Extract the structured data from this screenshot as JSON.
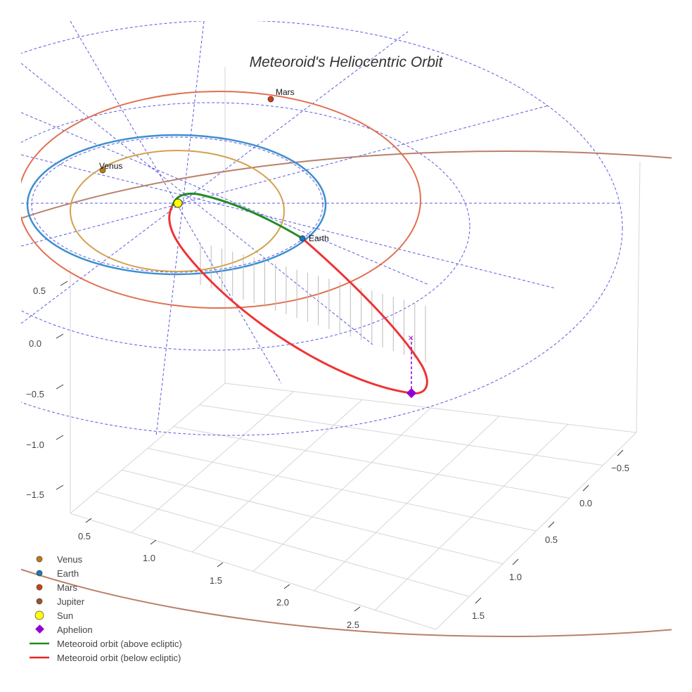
{
  "chart_data": {
    "type": "scatter3d",
    "title": "Meteoroid's Heliocentric Orbit",
    "axes": {
      "x_ticks": [
        "0.5",
        "1.0",
        "1.5",
        "2.0",
        "2.5"
      ],
      "y_ticks": [
        "−0.5",
        "0.0",
        "0.5",
        "1.0",
        "1.5"
      ],
      "z_ticks": [
        "0.5",
        "0.0",
        "−0.5",
        "−1.0",
        "−1.5"
      ]
    },
    "planets": [
      {
        "name": "Venus",
        "orbit_radius_au": 0.72,
        "color": "#d4a04c",
        "marker": "#c07a10"
      },
      {
        "name": "Earth",
        "orbit_radius_au": 1.0,
        "color": "#3d8fd1",
        "marker": "#1f77b4"
      },
      {
        "name": "Mars",
        "orbit_radius_au": 1.52,
        "color": "#e07050",
        "marker": "#d04010"
      },
      {
        "name": "Jupiter",
        "orbit_radius_au": 5.2,
        "color": "#b9806a",
        "marker": "#a0522d"
      }
    ],
    "point_labels": {
      "venus": "Venus",
      "earth": "Earth",
      "mars": "Mars"
    },
    "legend": [
      {
        "label": "Venus",
        "symbol": "circle",
        "color": "#c07a10"
      },
      {
        "label": "Earth",
        "symbol": "circle",
        "color": "#1f77b4"
      },
      {
        "label": "Mars",
        "symbol": "circle",
        "color": "#d04010"
      },
      {
        "label": "Jupiter",
        "symbol": "circle",
        "color": "#a0522d"
      },
      {
        "label": "Sun",
        "symbol": "circle-lg",
        "color": "#ffff00"
      },
      {
        "label": "Aphelion",
        "symbol": "diamond",
        "color": "#9400d3"
      },
      {
        "label": "Meteoroid orbit (above ecliptic)",
        "symbol": "line",
        "color": "#228b22"
      },
      {
        "label": "Meteoroid orbit (below ecliptic)",
        "symbol": "line",
        "color": "#ee2222"
      }
    ],
    "legend_position": "bottom-left"
  }
}
